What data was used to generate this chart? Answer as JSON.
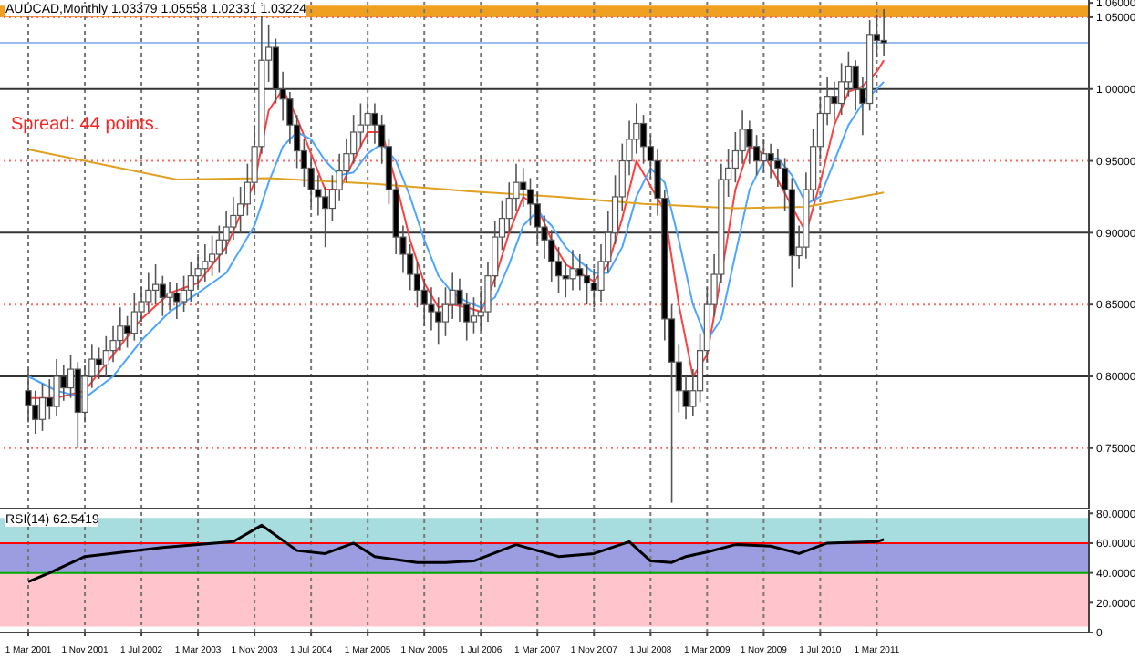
{
  "chart_data": [
    {
      "type": "candlestick",
      "title": "AUDCAD,Monthly 1.03379 1.05558 1.02331 1.03224",
      "annotations": [
        "Spread: 44 points."
      ],
      "x": [
        "2001-03",
        "2001-04",
        "2001-05",
        "2001-06",
        "2001-07",
        "2001-08",
        "2001-09",
        "2001-10",
        "2001-11",
        "2001-12",
        "2002-01",
        "2002-02",
        "2002-03",
        "2002-04",
        "2002-05",
        "2002-06",
        "2002-07",
        "2002-08",
        "2002-09",
        "2002-10",
        "2002-11",
        "2002-12",
        "2003-01",
        "2003-02",
        "2003-03",
        "2003-04",
        "2003-05",
        "2003-06",
        "2003-07",
        "2003-08",
        "2003-09",
        "2003-10",
        "2003-11",
        "2003-12",
        "2004-01",
        "2004-02",
        "2004-03",
        "2004-04",
        "2004-05",
        "2004-06",
        "2004-07",
        "2004-08",
        "2004-09",
        "2004-10",
        "2004-11",
        "2004-12",
        "2005-01",
        "2005-02",
        "2005-03",
        "2005-04",
        "2005-05",
        "2005-06",
        "2005-07",
        "2005-08",
        "2005-09",
        "2005-10",
        "2005-11",
        "2005-12",
        "2006-01",
        "2006-02",
        "2006-03",
        "2006-04",
        "2006-05",
        "2006-06",
        "2006-07",
        "2006-08",
        "2006-09",
        "2006-10",
        "2006-11",
        "2006-12",
        "2007-01",
        "2007-02",
        "2007-03",
        "2007-04",
        "2007-05",
        "2007-06",
        "2007-07",
        "2007-08",
        "2007-09",
        "2007-10",
        "2007-11",
        "2007-12",
        "2008-01",
        "2008-02",
        "2008-03",
        "2008-04",
        "2008-05",
        "2008-06",
        "2008-07",
        "2008-08",
        "2008-09",
        "2008-10",
        "2008-11",
        "2008-12",
        "2009-01",
        "2009-02",
        "2009-03",
        "2009-04",
        "2009-05",
        "2009-06",
        "2009-07",
        "2009-08",
        "2009-09",
        "2009-10",
        "2009-11",
        "2009-12",
        "2010-01",
        "2010-02",
        "2010-03",
        "2010-04",
        "2010-05",
        "2010-06",
        "2010-07",
        "2010-08",
        "2010-09",
        "2010-10",
        "2010-11",
        "2010-12",
        "2011-01",
        "2011-02",
        "2011-03",
        "2011-04"
      ],
      "ohlc": [
        [
          0.79,
          0.805,
          0.768,
          0.78
        ],
        [
          0.78,
          0.79,
          0.76,
          0.77
        ],
        [
          0.77,
          0.795,
          0.762,
          0.785
        ],
        [
          0.785,
          0.798,
          0.77,
          0.779
        ],
        [
          0.779,
          0.812,
          0.772,
          0.8
        ],
        [
          0.8,
          0.808,
          0.783,
          0.792
        ],
        [
          0.792,
          0.815,
          0.785,
          0.805
        ],
        [
          0.805,
          0.81,
          0.75,
          0.775
        ],
        [
          0.775,
          0.808,
          0.768,
          0.8
        ],
        [
          0.8,
          0.822,
          0.792,
          0.812
        ],
        [
          0.812,
          0.82,
          0.798,
          0.808
        ],
        [
          0.808,
          0.828,
          0.8,
          0.818
        ],
        [
          0.818,
          0.835,
          0.81,
          0.825
        ],
        [
          0.825,
          0.848,
          0.818,
          0.835
        ],
        [
          0.835,
          0.842,
          0.82,
          0.83
        ],
        [
          0.83,
          0.858,
          0.825,
          0.845
        ],
        [
          0.845,
          0.862,
          0.838,
          0.852
        ],
        [
          0.852,
          0.872,
          0.845,
          0.86
        ],
        [
          0.86,
          0.878,
          0.85,
          0.864
        ],
        [
          0.864,
          0.87,
          0.842,
          0.855
        ],
        [
          0.855,
          0.866,
          0.846,
          0.858
        ],
        [
          0.858,
          0.865,
          0.84,
          0.852
        ],
        [
          0.852,
          0.87,
          0.845,
          0.86
        ],
        [
          0.86,
          0.88,
          0.852,
          0.87
        ],
        [
          0.87,
          0.885,
          0.862,
          0.875
        ],
        [
          0.875,
          0.892,
          0.866,
          0.88
        ],
        [
          0.88,
          0.898,
          0.87,
          0.885
        ],
        [
          0.885,
          0.905,
          0.872,
          0.895
        ],
        [
          0.895,
          0.915,
          0.885,
          0.904
        ],
        [
          0.904,
          0.925,
          0.895,
          0.912
        ],
        [
          0.912,
          0.932,
          0.9,
          0.92
        ],
        [
          0.92,
          0.948,
          0.912,
          0.935
        ],
        [
          0.935,
          0.975,
          0.928,
          0.96
        ],
        [
          0.96,
          1.06,
          0.955,
          1.02
        ],
        [
          1.02,
          1.045,
          1.005,
          1.029
        ],
        [
          1.029,
          1.035,
          0.99,
          1.0
        ],
        [
          1.0,
          1.012,
          0.978,
          0.993
        ],
        [
          0.993,
          0.998,
          0.962,
          0.975
        ],
        [
          0.975,
          0.982,
          0.945,
          0.957
        ],
        [
          0.957,
          0.965,
          0.932,
          0.945
        ],
        [
          0.945,
          0.952,
          0.918,
          0.93
        ],
        [
          0.93,
          0.94,
          0.912,
          0.925
        ],
        [
          0.925,
          0.932,
          0.89,
          0.917
        ],
        [
          0.917,
          0.94,
          0.908,
          0.93
        ],
        [
          0.93,
          0.955,
          0.922,
          0.943
        ],
        [
          0.943,
          0.965,
          0.935,
          0.955
        ],
        [
          0.955,
          0.982,
          0.948,
          0.97
        ],
        [
          0.97,
          0.99,
          0.96,
          0.975
        ],
        [
          0.975,
          0.992,
          0.962,
          0.983
        ],
        [
          0.983,
          0.99,
          0.962,
          0.975
        ],
        [
          0.975,
          0.982,
          0.948,
          0.96
        ],
        [
          0.96,
          0.965,
          0.92,
          0.93
        ],
        [
          0.93,
          0.935,
          0.885,
          0.897
        ],
        [
          0.897,
          0.905,
          0.872,
          0.885
        ],
        [
          0.885,
          0.892,
          0.86,
          0.871
        ],
        [
          0.871,
          0.88,
          0.848,
          0.86
        ],
        [
          0.86,
          0.868,
          0.835,
          0.85
        ],
        [
          0.85,
          0.862,
          0.832,
          0.845
        ],
        [
          0.845,
          0.855,
          0.822,
          0.838
        ],
        [
          0.838,
          0.862,
          0.828,
          0.85
        ],
        [
          0.85,
          0.872,
          0.84,
          0.86
        ],
        [
          0.86,
          0.868,
          0.838,
          0.85
        ],
        [
          0.85,
          0.858,
          0.825,
          0.838
        ],
        [
          0.838,
          0.855,
          0.83,
          0.842
        ],
        [
          0.842,
          0.86,
          0.832,
          0.845
        ],
        [
          0.845,
          0.88,
          0.838,
          0.87
        ],
        [
          0.87,
          0.908,
          0.862,
          0.897
        ],
        [
          0.897,
          0.922,
          0.888,
          0.91
        ],
        [
          0.91,
          0.935,
          0.9,
          0.924
        ],
        [
          0.924,
          0.948,
          0.915,
          0.935
        ],
        [
          0.935,
          0.945,
          0.918,
          0.93
        ],
        [
          0.93,
          0.938,
          0.905,
          0.92
        ],
        [
          0.92,
          0.928,
          0.892,
          0.904
        ],
        [
          0.904,
          0.912,
          0.882,
          0.895
        ],
        [
          0.895,
          0.902,
          0.866,
          0.88
        ],
        [
          0.88,
          0.89,
          0.858,
          0.87
        ],
        [
          0.87,
          0.88,
          0.855,
          0.868
        ],
        [
          0.868,
          0.888,
          0.86,
          0.875
        ],
        [
          0.875,
          0.885,
          0.86,
          0.87
        ],
        [
          0.87,
          0.878,
          0.85,
          0.865
        ],
        [
          0.865,
          0.875,
          0.848,
          0.86
        ],
        [
          0.86,
          0.892,
          0.852,
          0.88
        ],
        [
          0.88,
          0.915,
          0.872,
          0.9
        ],
        [
          0.9,
          0.94,
          0.892,
          0.925
        ],
        [
          0.925,
          0.962,
          0.915,
          0.95
        ],
        [
          0.95,
          0.978,
          0.94,
          0.965
        ],
        [
          0.965,
          0.99,
          0.955,
          0.976
        ],
        [
          0.976,
          0.982,
          0.948,
          0.96
        ],
        [
          0.96,
          0.968,
          0.938,
          0.95
        ],
        [
          0.95,
          0.958,
          0.912,
          0.924
        ],
        [
          0.924,
          0.93,
          0.825,
          0.84
        ],
        [
          0.84,
          0.85,
          0.712,
          0.81
        ],
        [
          0.81,
          0.822,
          0.775,
          0.79
        ],
        [
          0.79,
          0.8,
          0.77,
          0.779
        ],
        [
          0.779,
          0.805,
          0.772,
          0.79
        ],
        [
          0.79,
          0.83,
          0.782,
          0.818
        ],
        [
          0.818,
          0.862,
          0.81,
          0.85
        ],
        [
          0.85,
          0.885,
          0.842,
          0.871
        ],
        [
          0.871,
          0.948,
          0.865,
          0.937
        ],
        [
          0.937,
          0.958,
          0.925,
          0.945
        ],
        [
          0.945,
          0.97,
          0.935,
          0.957
        ],
        [
          0.957,
          0.985,
          0.948,
          0.972
        ],
        [
          0.972,
          0.978,
          0.948,
          0.96
        ],
        [
          0.96,
          0.968,
          0.94,
          0.95
        ],
        [
          0.95,
          0.965,
          0.942,
          0.955
        ],
        [
          0.955,
          0.962,
          0.938,
          0.95
        ],
        [
          0.95,
          0.958,
          0.932,
          0.945
        ],
        [
          0.945,
          0.952,
          0.915,
          0.93
        ],
        [
          0.93,
          0.938,
          0.862,
          0.884
        ],
        [
          0.884,
          0.905,
          0.875,
          0.89
        ],
        [
          0.89,
          0.942,
          0.882,
          0.93
        ],
        [
          0.93,
          0.972,
          0.922,
          0.96
        ],
        [
          0.96,
          0.995,
          0.952,
          0.983
        ],
        [
          0.983,
          1.008,
          0.975,
          0.995
        ],
        [
          0.995,
          1.005,
          0.978,
          0.99
        ],
        [
          0.99,
          1.018,
          0.982,
          1.005
        ],
        [
          1.005,
          1.026,
          0.995,
          1.016
        ],
        [
          1.016,
          1.02,
          0.985,
          1.0
        ],
        [
          1.0,
          1.008,
          0.968,
          0.99
        ],
        [
          0.99,
          1.048,
          0.985,
          1.038
        ],
        [
          1.038,
          1.052,
          1.022,
          1.03379
        ],
        [
          1.03379,
          1.05558,
          1.02331,
          1.03224
        ]
      ],
      "colors": [
        "#000000",
        "#000000",
        "#ffffff",
        "#000000",
        "#ffffff",
        "#000000",
        "#ffffff",
        "#000000",
        "#ffffff",
        "#ffffff",
        "#000000",
        "#ffffff",
        "#ffffff",
        "#ffffff",
        "#000000",
        "#ffffff",
        "#ffffff",
        "#ffffff",
        "#ffffff",
        "#000000",
        "#ffffff",
        "#000000",
        "#ffffff",
        "#ffffff",
        "#ffffff",
        "#ffffff",
        "#ffffff",
        "#ffffff",
        "#ffffff",
        "#ffffff",
        "#ffffff",
        "#ffffff",
        "#ffffff",
        "#ffffff",
        "#ffffff",
        "#000000",
        "#000000",
        "#000000",
        "#000000",
        "#000000",
        "#000000",
        "#000000",
        "#000000",
        "#ffffff",
        "#ffffff",
        "#ffffff",
        "#ffffff",
        "#ffffff",
        "#ffffff",
        "#000000",
        "#000000",
        "#000000",
        "#000000",
        "#000000",
        "#000000",
        "#000000",
        "#000000",
        "#000000",
        "#000000",
        "#ffffff",
        "#ffffff",
        "#000000",
        "#000000",
        "#ffffff",
        "#ffffff",
        "#ffffff",
        "#ffffff",
        "#ffffff",
        "#ffffff",
        "#ffffff",
        "#000000",
        "#000000",
        "#000000",
        "#000000",
        "#000000",
        "#000000",
        "#000000",
        "#ffffff",
        "#000000",
        "#000000",
        "#000000",
        "#ffffff",
        "#ffffff",
        "#ffffff",
        "#ffffff",
        "#ffffff",
        "#ffffff",
        "#000000",
        "#000000",
        "#000000",
        "#000000",
        "#000000",
        "#000000",
        "#000000",
        "#ffffff",
        "#ffffff",
        "#ffffff",
        "#ffffff",
        "#ffffff",
        "#ffffff",
        "#ffffff",
        "#ffffff",
        "#000000",
        "#000000",
        "#ffffff",
        "#000000",
        "#000000",
        "#000000",
        "#000000",
        "#ffffff",
        "#ffffff",
        "#ffffff",
        "#ffffff",
        "#ffffff",
        "#000000",
        "#ffffff",
        "#ffffff",
        "#000000",
        "#000000",
        "#ffffff",
        "#000000",
        "#000000"
      ],
      "series": [
        {
          "type": "line",
          "color": "#ff4040",
          "x": [
            "2001-03",
            "2001-07",
            "2001-11",
            "2002-03",
            "2002-07",
            "2002-11",
            "2003-03",
            "2003-07",
            "2003-11",
            "2004-01",
            "2004-03",
            "2004-05",
            "2004-07",
            "2004-09",
            "2004-11",
            "2005-01",
            "2005-03",
            "2005-05",
            "2005-07",
            "2005-09",
            "2005-11",
            "2006-01",
            "2006-03",
            "2006-05",
            "2006-07",
            "2006-09",
            "2006-11",
            "2007-01",
            "2007-03",
            "2007-05",
            "2007-07",
            "2007-09",
            "2007-11",
            "2008-01",
            "2008-03",
            "2008-05",
            "2008-07",
            "2008-09",
            "2008-11",
            "2009-01",
            "2009-03",
            "2009-05",
            "2009-07",
            "2009-09",
            "2009-11",
            "2010-01",
            "2010-03",
            "2010-05",
            "2010-07",
            "2010-09",
            "2010-11",
            "2011-01",
            "2011-03",
            "2011-04"
          ],
          "values": [
            0.785,
            0.785,
            0.79,
            0.815,
            0.84,
            0.858,
            0.865,
            0.89,
            0.935,
            0.985,
            1.0,
            0.98,
            0.955,
            0.93,
            0.93,
            0.95,
            0.97,
            0.97,
            0.935,
            0.895,
            0.865,
            0.848,
            0.85,
            0.848,
            0.845,
            0.868,
            0.9,
            0.925,
            0.918,
            0.895,
            0.878,
            0.872,
            0.866,
            0.878,
            0.91,
            0.95,
            null,
            0.915,
            0.85,
            0.8,
            0.815,
            0.87,
            0.93,
            0.96,
            0.955,
            null,
            null,
            0.9,
            0.935,
            0.975,
            0.998,
            1.002,
            1.012,
            1.02
          ]
        },
        {
          "type": "line",
          "color": "#4da6ff",
          "x": [
            "2001-03",
            "2001-07",
            "2001-11",
            "2002-03",
            "2002-07",
            "2002-11",
            "2003-03",
            "2003-07",
            "2003-11",
            "2004-01",
            "2004-03",
            "2004-05",
            "2004-07",
            "2004-09",
            "2004-11",
            "2005-01",
            "2005-03",
            "2005-05",
            "2005-07",
            "2005-09",
            "2005-11",
            "2006-01",
            "2006-03",
            "2006-05",
            "2006-07",
            "2006-09",
            "2006-11",
            "2007-01",
            "2007-03",
            "2007-05",
            "2007-07",
            "2007-09",
            "2007-11",
            "2008-01",
            "2008-03",
            "2008-05",
            "2008-07",
            "2008-09",
            "2008-11",
            "2009-01",
            "2009-03",
            "2009-05",
            "2009-07",
            "2009-09",
            "2009-11",
            "2010-01",
            "2010-03",
            "2010-05",
            "2010-07",
            "2010-09",
            "2010-11",
            "2011-01",
            "2011-03",
            "2011-04"
          ],
          "values": [
            0.8,
            0.79,
            0.785,
            0.8,
            0.825,
            0.845,
            0.858,
            0.872,
            0.905,
            0.935,
            0.96,
            0.97,
            0.965,
            0.95,
            0.94,
            0.942,
            0.955,
            0.962,
            0.95,
            0.925,
            0.895,
            0.87,
            0.858,
            0.852,
            0.848,
            0.855,
            0.878,
            0.905,
            0.915,
            0.905,
            0.89,
            0.88,
            0.872,
            0.872,
            0.89,
            0.925,
            0.945,
            0.935,
            0.895,
            0.85,
            0.825,
            0.84,
            0.885,
            0.93,
            0.95,
            0.952,
            0.94,
            0.92,
            0.925,
            0.95,
            0.975,
            0.99,
            1.0,
            1.005
          ]
        },
        {
          "type": "line",
          "color": "#e0a020",
          "x": [
            "2001-03",
            "2002-12",
            "2004-01",
            "2005-04",
            "2006-05",
            "2007-06",
            "2008-06",
            "2009-07",
            "2010-05",
            "2011-04"
          ],
          "values": [
            0.958,
            0.937,
            0.938,
            0.934,
            0.929,
            0.925,
            0.92,
            0.917,
            0.918,
            0.928
          ]
        }
      ],
      "xlim": [
        "2000-11",
        "2013-09"
      ],
      "xticks": [
        {
          "value": "2001-03",
          "label": null
        },
        {
          "value": "2001-11",
          "label": null
        },
        {
          "value": "2002-07",
          "label": null
        },
        {
          "value": "2003-03",
          "label": null
        },
        {
          "value": "2003-11",
          "label": null
        },
        {
          "value": "2004-07",
          "label": null
        },
        {
          "value": "2005-03",
          "label": null
        },
        {
          "value": "2005-11",
          "label": null
        },
        {
          "value": "2006-07",
          "label": null
        },
        {
          "value": "2007-03",
          "label": null
        },
        {
          "value": "2007-11",
          "label": null
        },
        {
          "value": "2008-07",
          "label": null
        },
        {
          "value": "2009-03",
          "label": null
        },
        {
          "value": "2009-11",
          "label": null
        },
        {
          "value": "2010-07",
          "label": null
        },
        {
          "value": "2011-03",
          "label": null
        }
      ],
      "ylim": [
        0.708,
        1.062
      ],
      "yticks": [
        {
          "value": 1.06,
          "label": "1.06000"
        },
        {
          "value": 1.05,
          "label": "1.05000"
        },
        {
          "value": 1.0,
          "label": "1.00000"
        },
        {
          "value": 0.95,
          "label": "0.95000"
        },
        {
          "value": 0.9,
          "label": "0.90000"
        },
        {
          "value": 0.85,
          "label": "0.85000"
        },
        {
          "value": 0.8,
          "label": "0.80000"
        },
        {
          "value": 0.75,
          "label": "0.75000"
        }
      ],
      "ref_lines": [
        {
          "axis": "y",
          "value": 1.0,
          "color": "#333333",
          "line_style": "solid"
        },
        {
          "axis": "y",
          "value": 0.9,
          "color": "#333333",
          "line_style": "solid"
        },
        {
          "axis": "y",
          "value": 0.8,
          "color": "#333333",
          "line_style": "solid"
        },
        {
          "axis": "y",
          "value": 1.05,
          "color": "#ff6666",
          "line_style": "dotted"
        },
        {
          "axis": "y",
          "value": 0.95,
          "color": "#ff6666",
          "line_style": "dotted"
        },
        {
          "axis": "y",
          "value": 0.85,
          "color": "#ff6666",
          "line_style": "dotted"
        },
        {
          "axis": "y",
          "value": 0.75,
          "color": "#ff6666",
          "line_style": "dotted"
        },
        {
          "axis": "y",
          "value": 1.03224,
          "color": "#99bbee",
          "line_style": "solid"
        }
      ],
      "bands": [
        {
          "axis": "y",
          "from": 1.05,
          "to": 1.058,
          "color": "#f0a020"
        }
      ],
      "grid": "x",
      "tick_labels": "y"
    },
    {
      "type": "line",
      "title": "RSI(14) 62.5419",
      "series": [
        {
          "color": "#000000",
          "x": [
            "2001-03",
            "2001-06",
            "2001-11",
            "2002-10",
            "2003-08",
            "2003-12",
            "2004-05",
            "2004-09",
            "2005-01",
            "2005-04",
            "2005-10",
            "2006-02",
            "2006-06",
            "2006-12",
            "2007-06",
            "2007-11",
            "2008-04",
            "2008-07",
            "2008-10",
            "2008-12",
            "2009-03",
            "2009-07",
            "2009-12",
            "2010-04",
            "2010-08",
            "2011-03",
            "2011-04"
          ],
          "values": [
            34,
            40,
            51,
            57,
            61,
            72,
            55,
            53,
            60,
            51,
            47,
            47,
            48,
            59,
            51,
            53,
            61,
            48,
            47,
            51,
            54,
            59,
            58,
            53,
            60,
            61,
            62.5
          ]
        }
      ],
      "xlim": [
        "2000-11",
        "2013-09"
      ],
      "xticks": [
        {
          "value": "2001-03",
          "label": "1 Mar 2001"
        },
        {
          "value": "2001-11",
          "label": "1 Nov 2001"
        },
        {
          "value": "2002-07",
          "label": "1 Jul 2002"
        },
        {
          "value": "2003-03",
          "label": "1 Mar 2003"
        },
        {
          "value": "2003-11",
          "label": "1 Nov 2003"
        },
        {
          "value": "2004-07",
          "label": "1 Jul 2004"
        },
        {
          "value": "2005-03",
          "label": "1 Mar 2005"
        },
        {
          "value": "2005-11",
          "label": "1 Nov 2005"
        },
        {
          "value": "2006-07",
          "label": "1 Jul 2006"
        },
        {
          "value": "2007-03",
          "label": "1 Mar 2007"
        },
        {
          "value": "2007-11",
          "label": "1 Nov 2007"
        },
        {
          "value": "2008-07",
          "label": "1 Jul 2008"
        },
        {
          "value": "2009-03",
          "label": "1 Mar 2009"
        },
        {
          "value": "2009-11",
          "label": "1 Nov 2009"
        },
        {
          "value": "2010-07",
          "label": "1 Jul 2010"
        },
        {
          "value": "2011-03",
          "label": "1 Mar 2011"
        }
      ],
      "ylim": [
        0,
        82
      ],
      "yticks": [
        0,
        {
          "value": 20,
          "label": "20.0000"
        },
        {
          "value": 40,
          "label": "40.0000"
        },
        {
          "value": 60,
          "label": "60.0000"
        },
        {
          "value": 80,
          "label": "80.0000"
        }
      ],
      "bands": [
        {
          "axis": "y",
          "from": 60,
          "to": 77,
          "color": "#a8dde0"
        },
        {
          "axis": "y",
          "from": 40,
          "to": 60,
          "color": "#9c9ce0"
        },
        {
          "axis": "y",
          "from": 4,
          "to": 40,
          "color": "#ffc4cc"
        }
      ],
      "ref_lines": [
        {
          "axis": "y",
          "value": 60,
          "color": "#ff0000",
          "line_style": "solid"
        },
        {
          "axis": "y",
          "value": 40,
          "color": "#00aa00",
          "line_style": "solid"
        }
      ],
      "grid": "x"
    }
  ]
}
